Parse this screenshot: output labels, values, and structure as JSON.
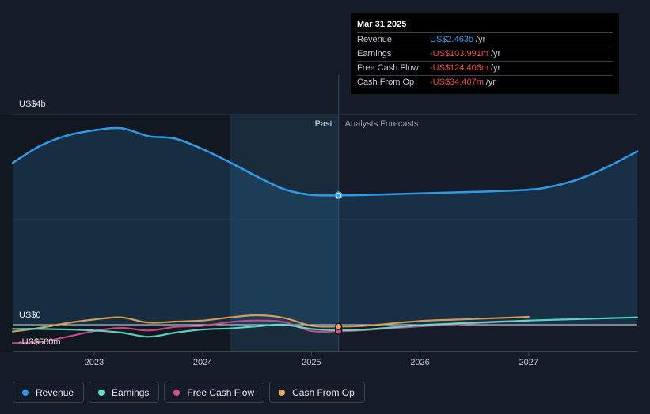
{
  "tooltip": {
    "date": "Mar 31 2025",
    "rows": [
      {
        "label": "Revenue",
        "value": "US$2.463b",
        "unit": "/yr"
      },
      {
        "label": "Earnings",
        "value": "-US$103.991m",
        "unit": "/yr"
      },
      {
        "label": "Free Cash Flow",
        "value": "-US$124.406m",
        "unit": "/yr"
      },
      {
        "label": "Cash From Op",
        "value": "-US$34.407m",
        "unit": "/yr"
      }
    ]
  },
  "legend": [
    {
      "label": "Revenue",
      "color": "#2f9be6"
    },
    {
      "label": "Earnings",
      "color": "#5ee6cf"
    },
    {
      "label": "Free Cash Flow",
      "color": "#d84f8c"
    },
    {
      "label": "Cash From Op",
      "color": "#e6a855"
    }
  ],
  "chart_data": {
    "type": "line",
    "section_labels": {
      "past": "Past",
      "forecast": "Analysts Forecasts"
    },
    "divider_x": 2025.25,
    "xlim": [
      2022.25,
      2028.0
    ],
    "ylim": [
      -500,
      4000
    ],
    "y_ticks": [
      {
        "value": 4000,
        "label": "US$4b"
      },
      {
        "value": 0,
        "label": "US$0"
      },
      {
        "value": -500,
        "label": "-US$500m"
      }
    ],
    "x_ticks": [
      {
        "value": 2023,
        "label": "2023"
      },
      {
        "value": 2024,
        "label": "2024"
      },
      {
        "value": 2025,
        "label": "2025"
      },
      {
        "value": 2026,
        "label": "2026"
      },
      {
        "value": 2027,
        "label": "2027"
      }
    ],
    "series": [
      {
        "name": "Revenue",
        "color": "#2f9be6",
        "x": [
          2022.25,
          2022.5,
          2022.75,
          2023.0,
          2023.25,
          2023.5,
          2023.75,
          2024.0,
          2024.25,
          2024.5,
          2024.75,
          2025.0,
          2025.25,
          2025.5,
          2026.0,
          2026.5,
          2027.0,
          2027.25,
          2027.5,
          2027.75,
          2028.0
        ],
        "y": [
          3080,
          3400,
          3600,
          3700,
          3740,
          3590,
          3540,
          3340,
          3090,
          2820,
          2580,
          2470,
          2463,
          2470,
          2500,
          2530,
          2570,
          2650,
          2800,
          3030,
          3300
        ]
      },
      {
        "name": "Earnings",
        "color": "#5ee6cf",
        "x": [
          2022.25,
          2022.5,
          2022.75,
          2023.0,
          2023.25,
          2023.5,
          2023.75,
          2024.0,
          2024.25,
          2024.5,
          2024.75,
          2025.0,
          2025.25,
          2025.5,
          2026.0,
          2026.5,
          2027.0,
          2027.5,
          2028.0
        ],
        "y": [
          -80,
          -80,
          -90,
          -110,
          -150,
          -230,
          -150,
          -90,
          -70,
          -30,
          0,
          -80,
          -104,
          -90,
          -10,
          40,
          80,
          110,
          140
        ]
      },
      {
        "name": "Free Cash Flow",
        "color": "#d84f8c",
        "x": [
          2022.25,
          2022.5,
          2022.75,
          2023.0,
          2023.25,
          2023.5,
          2023.75,
          2024.0,
          2024.25,
          2024.5,
          2024.75,
          2025.0,
          2025.25,
          2025.5,
          2026.0,
          2026.5,
          2027.0
        ],
        "y": [
          -350,
          -330,
          -230,
          -120,
          -60,
          -110,
          -40,
          -20,
          50,
          80,
          50,
          -120,
          -124,
          -100,
          -30,
          30,
          80
        ]
      },
      {
        "name": "Cash From Op",
        "color": "#e6a855",
        "x": [
          2022.25,
          2022.5,
          2022.75,
          2023.0,
          2023.25,
          2023.5,
          2023.75,
          2024.0,
          2024.25,
          2024.5,
          2024.75,
          2025.0,
          2025.25,
          2025.5,
          2026.0,
          2026.5,
          2027.0
        ],
        "y": [
          -130,
          -60,
          30,
          100,
          140,
          40,
          60,
          80,
          140,
          180,
          130,
          -20,
          -34,
          -20,
          70,
          110,
          150
        ]
      }
    ],
    "highlight_x": 2025.25
  }
}
